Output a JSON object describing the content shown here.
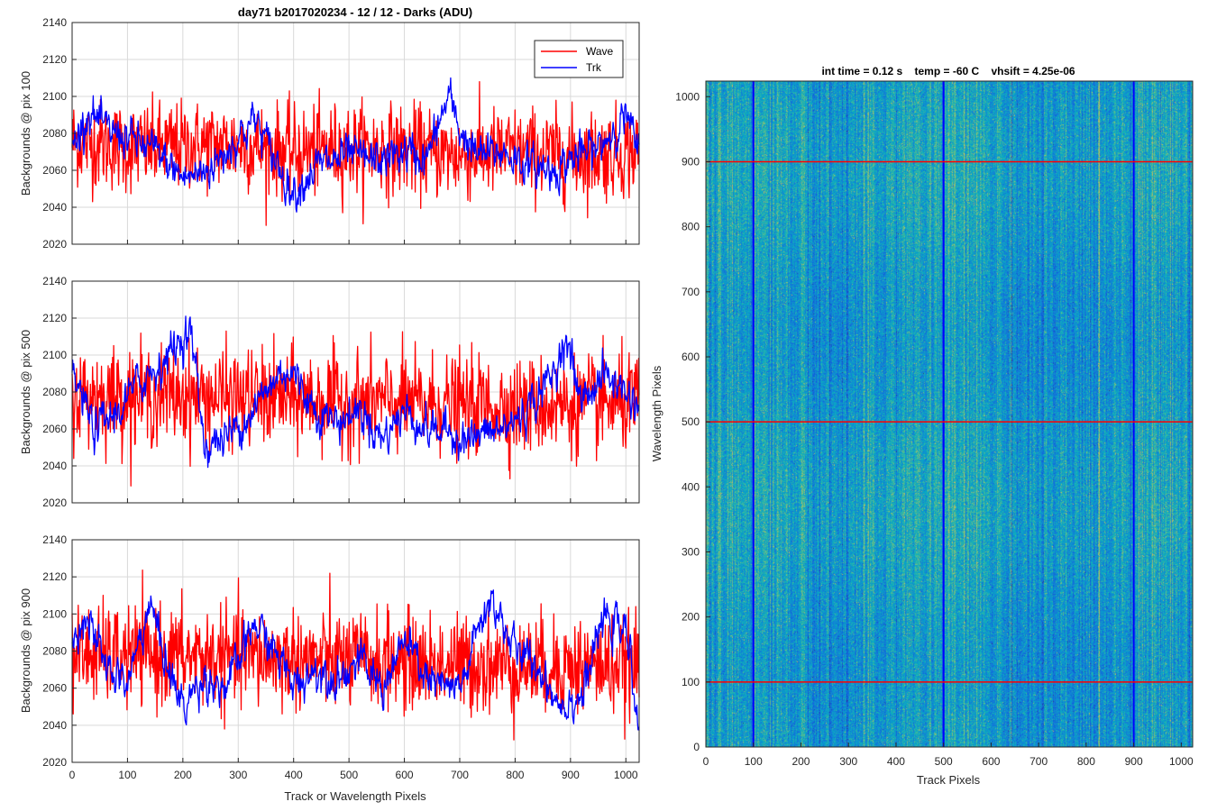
{
  "figure": {
    "title": "day71 b2017020234 - 12 / 12 - Darks (ADU)",
    "colors": {
      "wave": "#ff0000",
      "trk": "#0000ff",
      "grid": "#d9d9d9",
      "axis": "#262626"
    }
  },
  "chart_data": [
    {
      "type": "line",
      "ylabel": "Backgrounds @ pix 100",
      "xlabel": "",
      "xlim": [
        0,
        1024
      ],
      "ylim": [
        2020,
        2140
      ],
      "xticks": [
        0,
        100,
        200,
        300,
        400,
        500,
        600,
        700,
        800,
        900,
        1000
      ],
      "yticks": [
        2020,
        2040,
        2060,
        2080,
        2100,
        2120,
        2140
      ],
      "grid": true,
      "legend": {
        "position": "top-right",
        "entries": [
          "Wave",
          "Trk"
        ]
      },
      "series": [
        {
          "name": "Wave",
          "color": "#ff0000",
          "mean": 2072,
          "noise": 12,
          "points": 1024,
          "profile_x": [
            0,
            100,
            200,
            300,
            400,
            500,
            600,
            700,
            800,
            900,
            1024
          ],
          "profile_y": [
            2076,
            2072,
            2073,
            2074,
            2070,
            2072,
            2071,
            2068,
            2070,
            2068,
            2070
          ]
        },
        {
          "name": "Trk",
          "color": "#0000ff",
          "mean": 2068,
          "noise": 6,
          "points": 1024,
          "profile_x": [
            0,
            30,
            60,
            100,
            150,
            200,
            230,
            260,
            300,
            330,
            380,
            400,
            440,
            500,
            550,
            600,
            640,
            680,
            700,
            730,
            780,
            830,
            870,
            900,
            950,
            1000,
            1024
          ],
          "profile_y": [
            2072,
            2092,
            2082,
            2078,
            2070,
            2056,
            2058,
            2064,
            2078,
            2088,
            2058,
            2048,
            2062,
            2068,
            2065,
            2070,
            2066,
            2100,
            2082,
            2068,
            2070,
            2062,
            2060,
            2066,
            2072,
            2090,
            2068
          ]
        }
      ]
    },
    {
      "type": "line",
      "ylabel": "Backgrounds @ pix 500",
      "xlabel": "",
      "xlim": [
        0,
        1024
      ],
      "ylim": [
        2020,
        2140
      ],
      "xticks": [
        0,
        100,
        200,
        300,
        400,
        500,
        600,
        700,
        800,
        900,
        1000
      ],
      "yticks": [
        2020,
        2040,
        2060,
        2080,
        2100,
        2120,
        2140
      ],
      "grid": true,
      "series": [
        {
          "name": "Wave",
          "color": "#ff0000",
          "mean": 2076,
          "noise": 13,
          "points": 1024,
          "profile_x": [
            0,
            200,
            400,
            600,
            800,
            1024
          ],
          "profile_y": [
            2078,
            2078,
            2076,
            2074,
            2072,
            2074
          ]
        },
        {
          "name": "Trk",
          "color": "#0000ff",
          "mean": 2070,
          "noise": 6,
          "points": 1024,
          "profile_x": [
            0,
            40,
            80,
            120,
            160,
            200,
            215,
            240,
            280,
            320,
            380,
            400,
            440,
            480,
            520,
            560,
            600,
            640,
            680,
            720,
            780,
            820,
            870,
            890,
            920,
            960,
            1000,
            1024
          ],
          "profile_y": [
            2090,
            2060,
            2068,
            2085,
            2095,
            2110,
            2112,
            2050,
            2056,
            2068,
            2092,
            2090,
            2070,
            2064,
            2070,
            2055,
            2070,
            2060,
            2058,
            2055,
            2060,
            2070,
            2090,
            2110,
            2075,
            2090,
            2080,
            2072
          ]
        }
      ]
    },
    {
      "type": "line",
      "ylabel": "Backgrounds @ pix 900",
      "xlabel": "Track or Wavelength Pixels",
      "xlim": [
        0,
        1024
      ],
      "ylim": [
        2020,
        2140
      ],
      "xticks": [
        0,
        100,
        200,
        300,
        400,
        500,
        600,
        700,
        800,
        900,
        1000
      ],
      "yticks": [
        2020,
        2040,
        2060,
        2080,
        2100,
        2120,
        2140
      ],
      "grid": true,
      "series": [
        {
          "name": "Wave",
          "color": "#ff0000",
          "mean": 2076,
          "noise": 13,
          "points": 1024,
          "profile_x": [
            0,
            200,
            400,
            600,
            800,
            1024
          ],
          "profile_y": [
            2078,
            2077,
            2076,
            2074,
            2072,
            2072
          ]
        },
        {
          "name": "Trk",
          "color": "#0000ff",
          "mean": 2070,
          "noise": 6,
          "points": 1024,
          "profile_x": [
            0,
            20,
            60,
            100,
            140,
            180,
            200,
            240,
            280,
            330,
            370,
            400,
            440,
            480,
            520,
            560,
            600,
            650,
            700,
            740,
            760,
            800,
            840,
            880,
            920,
            960,
            1000,
            1024
          ],
          "profile_y": [
            2080,
            2102,
            2072,
            2062,
            2106,
            2065,
            2050,
            2066,
            2060,
            2095,
            2078,
            2062,
            2070,
            2066,
            2075,
            2060,
            2085,
            2062,
            2058,
            2098,
            2108,
            2080,
            2072,
            2052,
            2055,
            2098,
            2090,
            2042
          ]
        }
      ]
    },
    {
      "type": "heatmap",
      "title": "int time = 0.12 s    temp = -60 C    vhsift = 4.25e-06",
      "xlabel": "Track Pixels",
      "ylabel": "Wavelength Pixels",
      "xlim": [
        0,
        1024
      ],
      "ylim": [
        0,
        1024
      ],
      "xticks": [
        0,
        100,
        200,
        300,
        400,
        500,
        600,
        700,
        800,
        900,
        1000
      ],
      "yticks": [
        0,
        100,
        200,
        300,
        400,
        500,
        600,
        700,
        800,
        900,
        1000
      ],
      "colormap": "parula",
      "value_range": [
        2030,
        2110
      ],
      "vertical_markers": {
        "x": [
          100,
          500,
          900
        ],
        "color": "#0000ff"
      },
      "horizontal_markers": {
        "y": [
          100,
          500,
          900
        ],
        "color": "#ff0000"
      }
    }
  ]
}
